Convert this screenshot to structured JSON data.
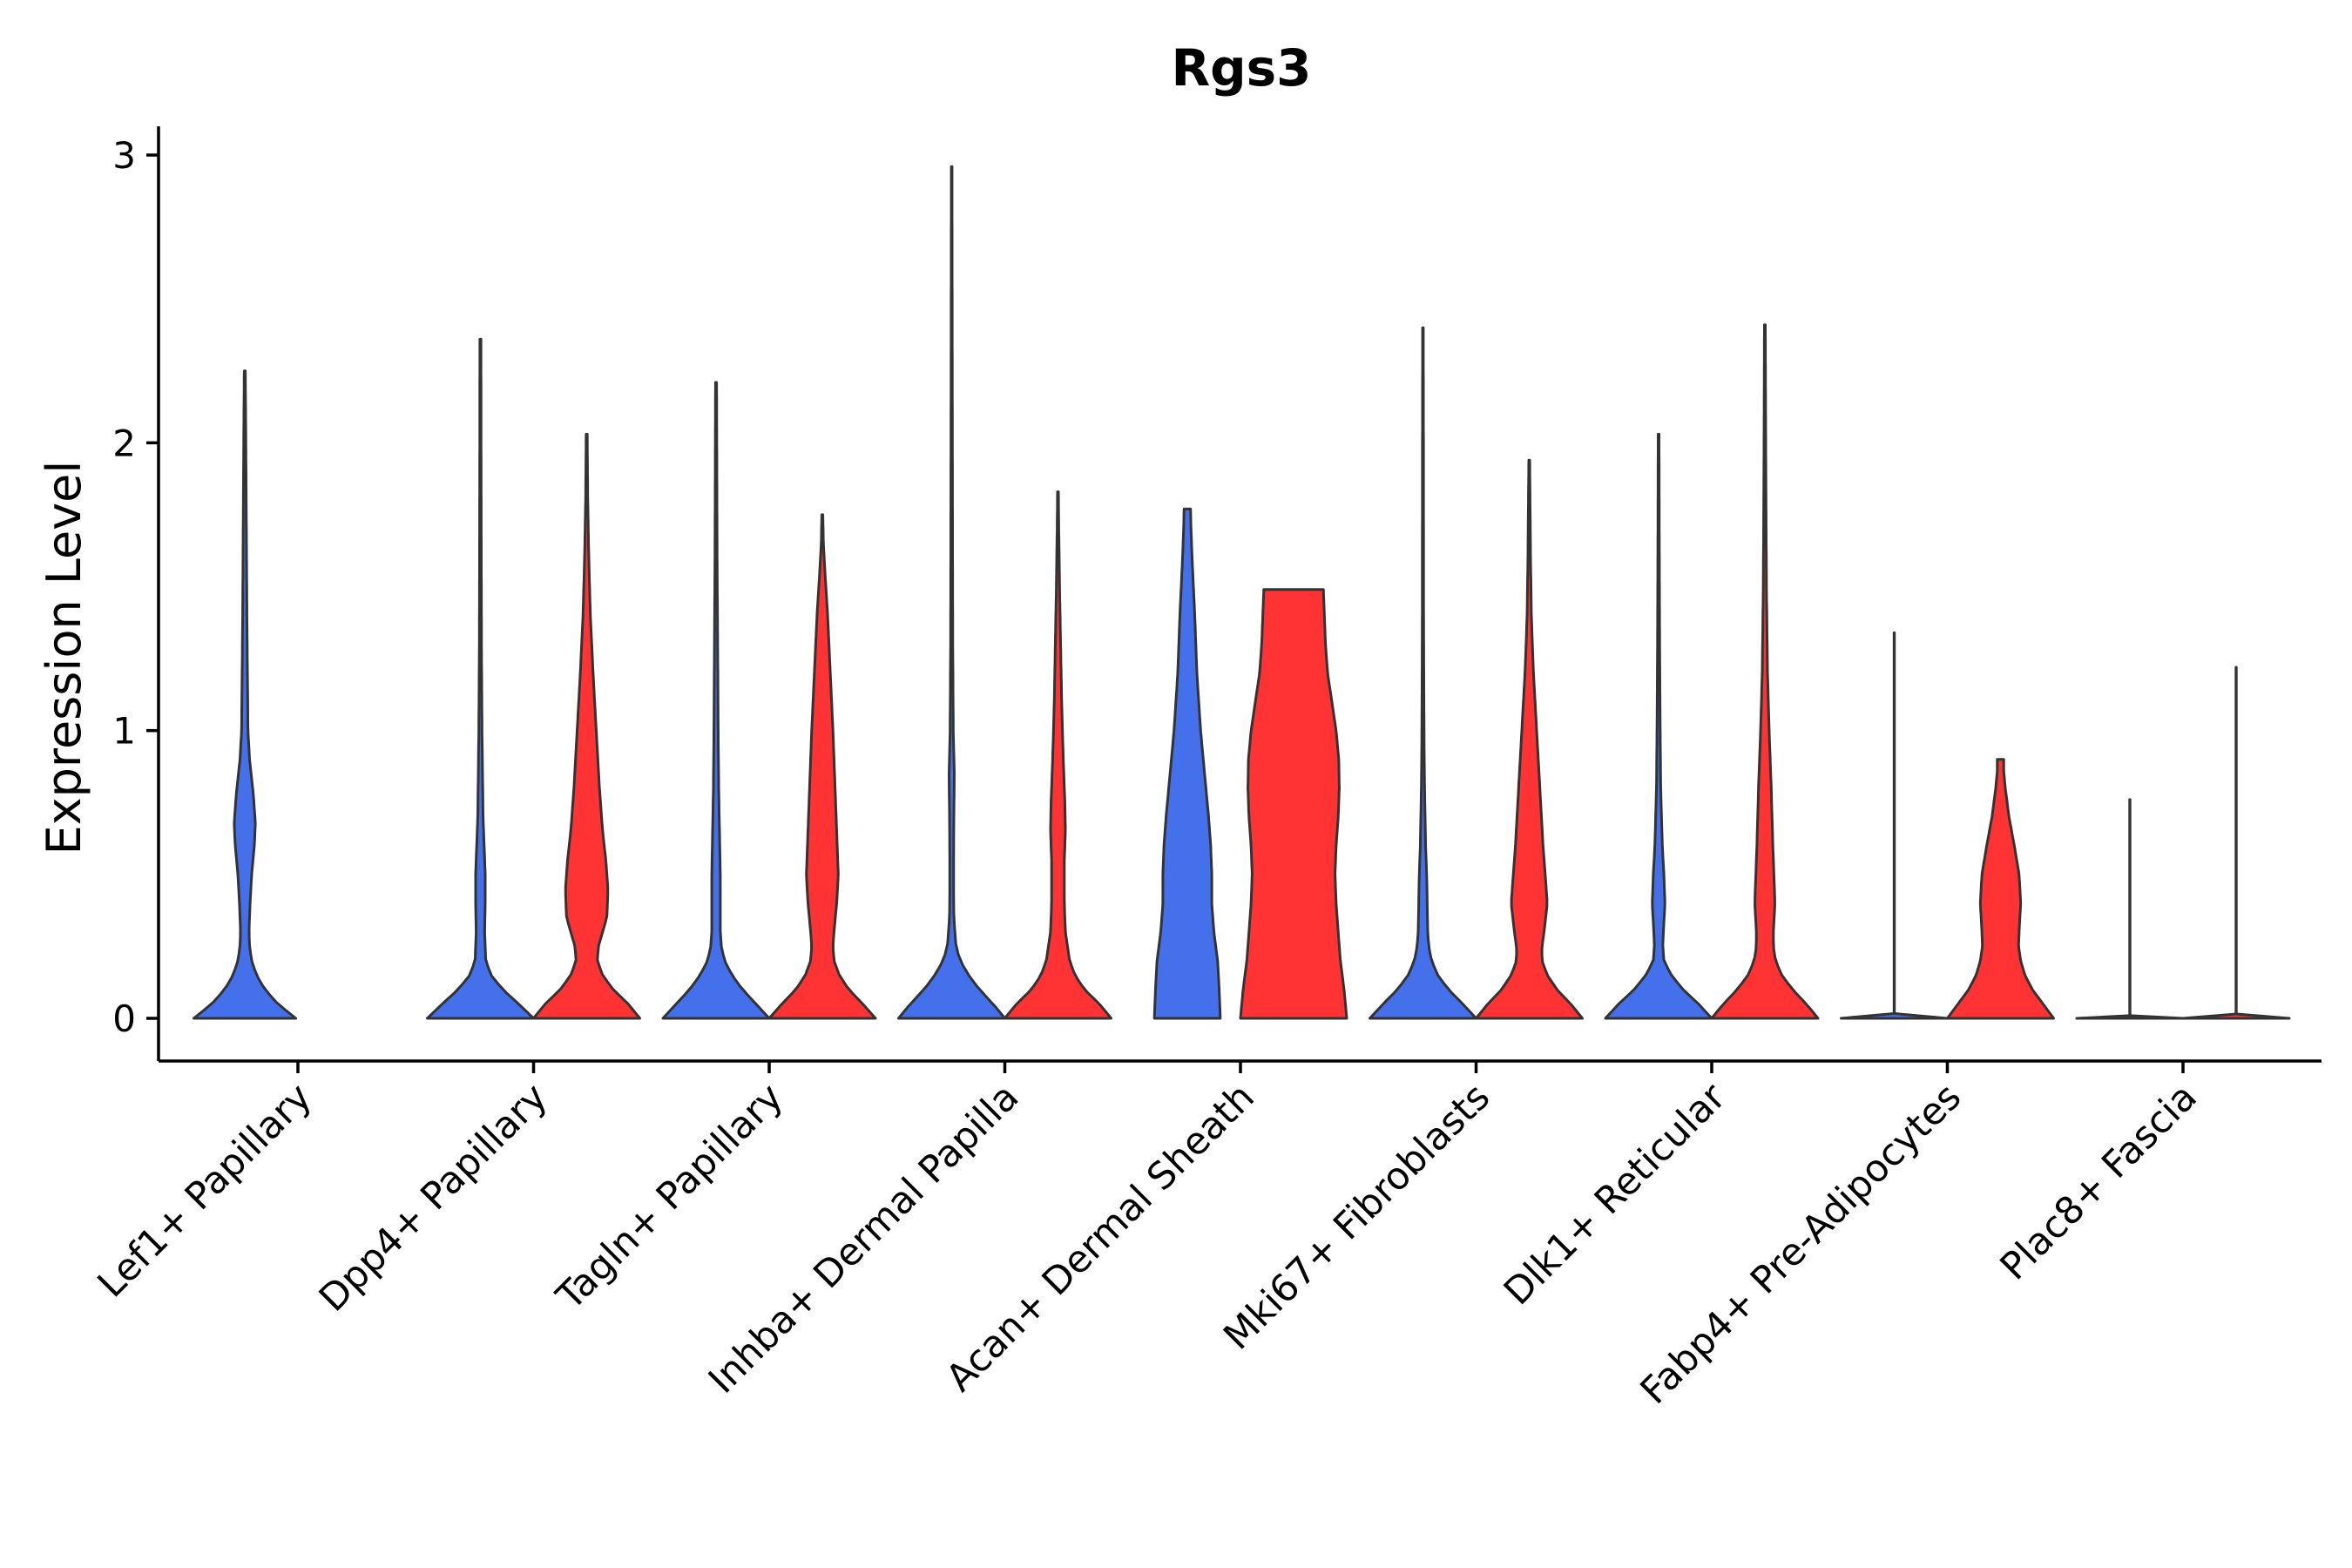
{
  "chart_data": {
    "type": "violin",
    "title": "Rgs3",
    "xlabel": "",
    "ylabel": "Expression Level",
    "ylim": [
      -0.15,
      3.1
    ],
    "yticks": [
      0,
      1,
      2,
      3
    ],
    "grid": false,
    "legend": "none",
    "group_colors": [
      "#4471EB",
      "#FF3333"
    ],
    "categories": [
      "Lef1+ Papillary",
      "Dpp4+ Papillary",
      "Tagln+ Papillary",
      "Inhba+ Dermal Papilla",
      "Acan+ Dermal Sheath",
      "Mki67+ Fibroblasts",
      "Dlk1+ Reticular",
      "Fabp4+ Pre-Adipocytes",
      "Plac8+ Fascia"
    ],
    "violins": [
      {
        "category": "Lef1+ Papillary",
        "group": 0,
        "max": 2.25,
        "profile": [
          [
            0,
            0.96
          ],
          [
            0.05,
            0.62
          ],
          [
            0.1,
            0.38
          ],
          [
            0.15,
            0.22
          ],
          [
            0.2,
            0.13
          ],
          [
            0.25,
            0.09
          ],
          [
            0.3,
            0.08
          ],
          [
            0.4,
            0.1
          ],
          [
            0.5,
            0.13
          ],
          [
            0.6,
            0.18
          ],
          [
            0.68,
            0.2
          ],
          [
            0.78,
            0.16
          ],
          [
            0.9,
            0.09
          ],
          [
            1.0,
            0.06
          ],
          [
            1.2,
            0.05
          ],
          [
            1.4,
            0.04
          ],
          [
            1.7,
            0.03
          ],
          [
            2.0,
            0.02
          ],
          [
            2.25,
            0.01
          ]
        ]
      },
      {
        "category": "Dpp4+ Papillary",
        "group": 0,
        "max": 2.36,
        "profile": [
          [
            0,
            1.0
          ],
          [
            0.05,
            0.72
          ],
          [
            0.1,
            0.42
          ],
          [
            0.15,
            0.2
          ],
          [
            0.2,
            0.1
          ],
          [
            0.3,
            0.08
          ],
          [
            0.4,
            0.09
          ],
          [
            0.5,
            0.09
          ],
          [
            0.6,
            0.07
          ],
          [
            0.7,
            0.05
          ],
          [
            0.85,
            0.04
          ],
          [
            1.0,
            0.03
          ],
          [
            1.3,
            0.02
          ],
          [
            1.7,
            0.015
          ],
          [
            2.0,
            0.012
          ],
          [
            2.36,
            0.01
          ]
        ]
      },
      {
        "category": "Dpp4+ Papillary",
        "group": 1,
        "max": 2.03,
        "profile": [
          [
            0,
            1.0
          ],
          [
            0.05,
            0.78
          ],
          [
            0.1,
            0.5
          ],
          [
            0.15,
            0.3
          ],
          [
            0.2,
            0.2
          ],
          [
            0.25,
            0.22
          ],
          [
            0.3,
            0.3
          ],
          [
            0.35,
            0.38
          ],
          [
            0.45,
            0.4
          ],
          [
            0.55,
            0.36
          ],
          [
            0.65,
            0.3
          ],
          [
            0.8,
            0.24
          ],
          [
            1.0,
            0.18
          ],
          [
            1.2,
            0.12
          ],
          [
            1.4,
            0.07
          ],
          [
            1.6,
            0.04
          ],
          [
            1.8,
            0.02
          ],
          [
            2.03,
            0.01
          ]
        ]
      },
      {
        "category": "Tagln+ Papillary",
        "group": 0,
        "max": 2.21,
        "profile": [
          [
            0,
            1.0
          ],
          [
            0.05,
            0.75
          ],
          [
            0.1,
            0.5
          ],
          [
            0.15,
            0.3
          ],
          [
            0.2,
            0.16
          ],
          [
            0.25,
            0.1
          ],
          [
            0.3,
            0.08
          ],
          [
            0.5,
            0.08
          ],
          [
            0.6,
            0.07
          ],
          [
            0.8,
            0.05
          ],
          [
            1.0,
            0.04
          ],
          [
            1.3,
            0.03
          ],
          [
            1.6,
            0.02
          ],
          [
            1.9,
            0.015
          ],
          [
            2.21,
            0.01
          ]
        ]
      },
      {
        "category": "Tagln+ Papillary",
        "group": 1,
        "max": 1.75,
        "profile": [
          [
            0,
            1.0
          ],
          [
            0.05,
            0.76
          ],
          [
            0.1,
            0.5
          ],
          [
            0.15,
            0.32
          ],
          [
            0.2,
            0.22
          ],
          [
            0.25,
            0.2
          ],
          [
            0.3,
            0.22
          ],
          [
            0.4,
            0.27
          ],
          [
            0.5,
            0.3
          ],
          [
            0.6,
            0.28
          ],
          [
            0.8,
            0.24
          ],
          [
            1.0,
            0.2
          ],
          [
            1.2,
            0.15
          ],
          [
            1.4,
            0.1
          ],
          [
            1.55,
            0.05
          ],
          [
            1.65,
            0.02
          ],
          [
            1.75,
            0.01
          ]
        ]
      },
      {
        "category": "Inhba+ Dermal Papilla",
        "group": 0,
        "max": 2.96,
        "profile": [
          [
            0,
            1.0
          ],
          [
            0.05,
            0.78
          ],
          [
            0.1,
            0.52
          ],
          [
            0.15,
            0.32
          ],
          [
            0.2,
            0.16
          ],
          [
            0.25,
            0.08
          ],
          [
            0.35,
            0.04
          ],
          [
            0.5,
            0.035
          ],
          [
            0.7,
            0.04
          ],
          [
            0.85,
            0.05
          ],
          [
            1.0,
            0.03
          ],
          [
            1.3,
            0.02
          ],
          [
            1.8,
            0.015
          ],
          [
            2.4,
            0.01
          ],
          [
            2.96,
            0.006
          ]
        ]
      },
      {
        "category": "Inhba+ Dermal Papilla",
        "group": 1,
        "max": 1.83,
        "profile": [
          [
            0,
            1.0
          ],
          [
            0.05,
            0.78
          ],
          [
            0.1,
            0.5
          ],
          [
            0.15,
            0.32
          ],
          [
            0.2,
            0.22
          ],
          [
            0.25,
            0.18
          ],
          [
            0.3,
            0.14
          ],
          [
            0.4,
            0.12
          ],
          [
            0.55,
            0.12
          ],
          [
            0.65,
            0.14
          ],
          [
            0.75,
            0.13
          ],
          [
            0.9,
            0.1
          ],
          [
            1.1,
            0.07
          ],
          [
            1.3,
            0.05
          ],
          [
            1.5,
            0.03
          ],
          [
            1.7,
            0.015
          ],
          [
            1.83,
            0.008
          ]
        ]
      },
      {
        "category": "Acan+ Dermal Sheath",
        "group": 0,
        "max": 1.77,
        "profile": [
          [
            0,
            0.62
          ],
          [
            0.1,
            0.6
          ],
          [
            0.2,
            0.57
          ],
          [
            0.3,
            0.5
          ],
          [
            0.4,
            0.46
          ],
          [
            0.5,
            0.46
          ],
          [
            0.6,
            0.44
          ],
          [
            0.7,
            0.4
          ],
          [
            0.8,
            0.35
          ],
          [
            0.9,
            0.3
          ],
          [
            1.0,
            0.25
          ],
          [
            1.2,
            0.18
          ],
          [
            1.4,
            0.14
          ],
          [
            1.6,
            0.09
          ],
          [
            1.7,
            0.07
          ],
          [
            1.77,
            0.06
          ]
        ]
      },
      {
        "category": "Acan+ Dermal Sheath",
        "group": 1,
        "max": 1.49,
        "profile": [
          [
            0,
            1.0
          ],
          [
            0.1,
            0.95
          ],
          [
            0.2,
            0.88
          ],
          [
            0.3,
            0.84
          ],
          [
            0.4,
            0.8
          ],
          [
            0.5,
            0.78
          ],
          [
            0.6,
            0.8
          ],
          [
            0.7,
            0.84
          ],
          [
            0.8,
            0.86
          ],
          [
            0.9,
            0.85
          ],
          [
            1.0,
            0.8
          ],
          [
            1.1,
            0.72
          ],
          [
            1.2,
            0.64
          ],
          [
            1.3,
            0.6
          ],
          [
            1.4,
            0.58
          ],
          [
            1.49,
            0.56
          ]
        ]
      },
      {
        "category": "Mki67+ Fibroblasts",
        "group": 0,
        "max": 2.4,
        "profile": [
          [
            0,
            1.0
          ],
          [
            0.05,
            0.75
          ],
          [
            0.1,
            0.48
          ],
          [
            0.15,
            0.28
          ],
          [
            0.2,
            0.16
          ],
          [
            0.25,
            0.11
          ],
          [
            0.3,
            0.09
          ],
          [
            0.4,
            0.08
          ],
          [
            0.5,
            0.07
          ],
          [
            0.6,
            0.05
          ],
          [
            0.8,
            0.03
          ],
          [
            1.0,
            0.02
          ],
          [
            1.4,
            0.012
          ],
          [
            1.9,
            0.01
          ],
          [
            2.4,
            0.006
          ]
        ]
      },
      {
        "category": "Mki67+ Fibroblasts",
        "group": 1,
        "max": 1.94,
        "profile": [
          [
            0,
            1.0
          ],
          [
            0.05,
            0.78
          ],
          [
            0.1,
            0.52
          ],
          [
            0.15,
            0.34
          ],
          [
            0.2,
            0.24
          ],
          [
            0.25,
            0.24
          ],
          [
            0.3,
            0.28
          ],
          [
            0.4,
            0.34
          ],
          [
            0.5,
            0.3
          ],
          [
            0.6,
            0.26
          ],
          [
            0.8,
            0.2
          ],
          [
            1.0,
            0.14
          ],
          [
            1.2,
            0.08
          ],
          [
            1.4,
            0.04
          ],
          [
            1.6,
            0.025
          ],
          [
            1.8,
            0.015
          ],
          [
            1.94,
            0.008
          ]
        ]
      },
      {
        "category": "Dlk1+ Reticular",
        "group": 0,
        "max": 2.03,
        "profile": [
          [
            0,
            1.0
          ],
          [
            0.05,
            0.75
          ],
          [
            0.1,
            0.46
          ],
          [
            0.15,
            0.24
          ],
          [
            0.2,
            0.1
          ],
          [
            0.25,
            0.08
          ],
          [
            0.3,
            0.09
          ],
          [
            0.4,
            0.12
          ],
          [
            0.5,
            0.1
          ],
          [
            0.6,
            0.07
          ],
          [
            0.8,
            0.04
          ],
          [
            1.0,
            0.03
          ],
          [
            1.3,
            0.02
          ],
          [
            1.7,
            0.012
          ],
          [
            2.03,
            0.008
          ]
        ]
      },
      {
        "category": "Dlk1+ Reticular",
        "group": 1,
        "max": 2.41,
        "profile": [
          [
            0,
            1.0
          ],
          [
            0.05,
            0.78
          ],
          [
            0.1,
            0.52
          ],
          [
            0.15,
            0.32
          ],
          [
            0.2,
            0.2
          ],
          [
            0.25,
            0.16
          ],
          [
            0.3,
            0.16
          ],
          [
            0.4,
            0.19
          ],
          [
            0.5,
            0.17
          ],
          [
            0.6,
            0.15
          ],
          [
            0.8,
            0.12
          ],
          [
            1.0,
            0.08
          ],
          [
            1.2,
            0.05
          ],
          [
            1.5,
            0.03
          ],
          [
            1.9,
            0.018
          ],
          [
            2.41,
            0.008
          ]
        ]
      },
      {
        "category": "Fabp4+ Pre-Adipocytes",
        "group": 0,
        "max": 1.34,
        "profile": [
          [
            0,
            1.0
          ],
          [
            0.004,
            0.001
          ],
          [
            0.01,
            0.004
          ],
          [
            1.34,
            0.004
          ]
        ]
      },
      {
        "category": "Fabp4+ Pre-Adipocytes",
        "group": 1,
        "max": 0.9,
        "profile": [
          [
            0,
            1.0
          ],
          [
            0.05,
            0.8
          ],
          [
            0.1,
            0.6
          ],
          [
            0.15,
            0.46
          ],
          [
            0.2,
            0.38
          ],
          [
            0.25,
            0.34
          ],
          [
            0.3,
            0.35
          ],
          [
            0.4,
            0.38
          ],
          [
            0.5,
            0.35
          ],
          [
            0.6,
            0.26
          ],
          [
            0.7,
            0.16
          ],
          [
            0.8,
            0.09
          ],
          [
            0.86,
            0.06
          ],
          [
            0.9,
            0.06
          ]
        ]
      },
      {
        "category": "Plac8+ Fascia",
        "group": 0,
        "max": 0.76,
        "profile": [
          [
            0,
            1.0
          ],
          [
            0.004,
            0.001
          ],
          [
            0.01,
            0.004
          ],
          [
            0.76,
            0.004
          ]
        ]
      },
      {
        "category": "Plac8+ Fascia",
        "group": 1,
        "max": 1.22,
        "profile": [
          [
            0,
            1.0
          ],
          [
            0.004,
            0.001
          ],
          [
            0.01,
            0.004
          ],
          [
            1.22,
            0.004
          ]
        ]
      }
    ]
  }
}
